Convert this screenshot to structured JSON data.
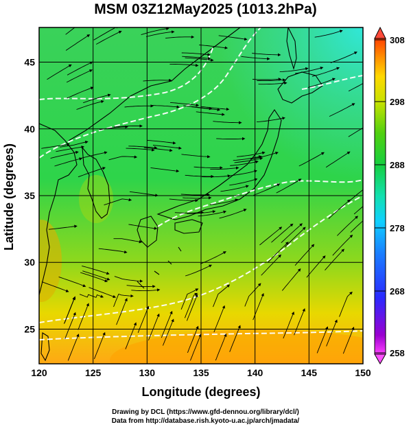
{
  "title": "MSM 03Z12May2025 (1013.2hPa)",
  "map": {
    "xlabel": "Longitude (degrees)",
    "ylabel": "Latitude  (degrees)",
    "lon_range": [
      120,
      150
    ],
    "lat_range": [
      22.4,
      47.6
    ],
    "lon_ticks": [
      120,
      125,
      130,
      135,
      140,
      145,
      150
    ],
    "lat_ticks": [
      25,
      30,
      35,
      40,
      45
    ],
    "grid": true,
    "field": "temperature shading with surface wind streamlines",
    "overlay_contours_color": "#ffffff",
    "coastline_color": "#000000"
  },
  "colorbar": {
    "min": 258,
    "max": 308,
    "tick_labels": [
      258,
      268,
      278,
      288,
      298,
      308
    ],
    "colors": [
      "#ff40ff",
      "#8800cc",
      "#2a2aff",
      "#1a7fff",
      "#10d0ff",
      "#12e0b0",
      "#16cf40",
      "#40d010",
      "#c0e000",
      "#ffe000",
      "#ff9800",
      "#ff4000"
    ]
  },
  "credits": {
    "line1": "Drawing by DCL (https://www.gfd-dennou.org/library/dcl/)",
    "line2": "Data from http://database.rish.kyoto-u.ac.jp/arch/jmadata/"
  }
}
